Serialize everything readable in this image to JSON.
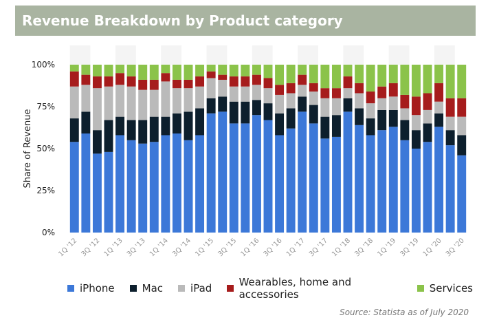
{
  "header": {
    "title": "Revenue Breakdown by Product category"
  },
  "source": "Source: Statista as of July 2020",
  "chart_data": {
    "type": "bar",
    "stacked": true,
    "title": "Revenue Breakdown by Product category",
    "xlabel": "",
    "ylabel": "Share of Revenue",
    "ylim": [
      0,
      100
    ],
    "yticks": [
      "0%",
      "25%",
      "50%",
      "75%",
      "100%"
    ],
    "grid": false,
    "legend_position": "bottom",
    "categories": [
      "1Q '12",
      "2Q '12",
      "3Q '12",
      "4Q '12",
      "1Q '13",
      "2Q '13",
      "3Q '13",
      "4Q '13",
      "1Q '14",
      "2Q '14",
      "3Q '14",
      "4Q '14",
      "1Q '15",
      "2Q '15",
      "3Q '15",
      "4Q '15",
      "1Q '16",
      "2Q '16",
      "3Q '16",
      "4Q '16",
      "1Q '17",
      "2Q '17",
      "3Q '17",
      "4Q '17",
      "1Q '18",
      "2Q '18",
      "3Q '18",
      "4Q '18",
      "1Q '19",
      "2Q '19",
      "3Q '19",
      "4Q '19",
      "1Q '20",
      "2Q '20",
      "3Q '20"
    ],
    "tick_labels": [
      "1Q '12",
      "",
      "3Q '12",
      "",
      "1Q '13",
      "",
      "3Q '13",
      "",
      "1Q '14",
      "",
      "3Q '14",
      "",
      "1Q '15",
      "",
      "3Q '15",
      "",
      "1Q '16",
      "",
      "3Q '16",
      "",
      "1Q '17",
      "",
      "3Q '17",
      "",
      "1Q '18",
      "",
      "3Q '18",
      "",
      "1Q '19",
      "",
      "3Q '19",
      "",
      "1Q '20",
      "",
      "3Q '20"
    ],
    "series": [
      {
        "name": "iPhone",
        "color": "#3c78d8",
        "values": [
          54,
          59,
          47,
          48,
          58,
          55,
          53,
          54,
          58,
          59,
          55,
          58,
          71,
          72,
          65,
          65,
          70,
          67,
          58,
          62,
          72,
          65,
          56,
          57,
          72,
          64,
          58,
          61,
          63,
          55,
          50,
          54,
          63,
          52,
          46
        ]
      },
      {
        "name": "Mac",
        "color": "#0d1f2d",
        "values": [
          14,
          13,
          14,
          19,
          11,
          12,
          14,
          15,
          11,
          12,
          17,
          16,
          9,
          9,
          13,
          13,
          9,
          10,
          13,
          12,
          9,
          11,
          13,
          13,
          8,
          10,
          10,
          12,
          10,
          12,
          11,
          11,
          8,
          9,
          12
        ]
      },
      {
        "name": "iPad",
        "color": "#bababa",
        "values": [
          19,
          16,
          25,
          20,
          19,
          20,
          18,
          16,
          21,
          15,
          14,
          13,
          12,
          10,
          9,
          9,
          9,
          9,
          11,
          9,
          7,
          8,
          11,
          10,
          6,
          9,
          9,
          7,
          8,
          7,
          9,
          8,
          7,
          8,
          11
        ]
      },
      {
        "name": "Wearables, home and accessories",
        "color": "#a61c1c",
        "values": [
          9,
          6,
          7,
          6,
          7,
          6,
          6,
          6,
          5,
          5,
          5,
          6,
          4,
          3,
          6,
          6,
          6,
          6,
          6,
          6,
          6,
          5,
          6,
          6,
          7,
          6,
          7,
          7,
          8,
          8,
          11,
          10,
          11,
          11,
          11
        ]
      },
      {
        "name": "Services",
        "color": "#8bc34a",
        "values": [
          4,
          6,
          7,
          7,
          5,
          7,
          9,
          9,
          5,
          9,
          9,
          7,
          4,
          6,
          7,
          7,
          6,
          8,
          12,
          11,
          6,
          11,
          14,
          14,
          7,
          11,
          16,
          13,
          11,
          18,
          19,
          17,
          11,
          20,
          20
        ]
      }
    ]
  }
}
